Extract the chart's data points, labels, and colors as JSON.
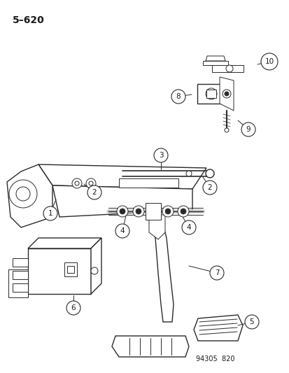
{
  "title": "5–620",
  "footer": "94305  820",
  "bg": "#ffffff",
  "lc": "#2a2a2a",
  "tc": "#1a1a1a",
  "fig_width": 4.14,
  "fig_height": 5.33,
  "dpi": 100
}
